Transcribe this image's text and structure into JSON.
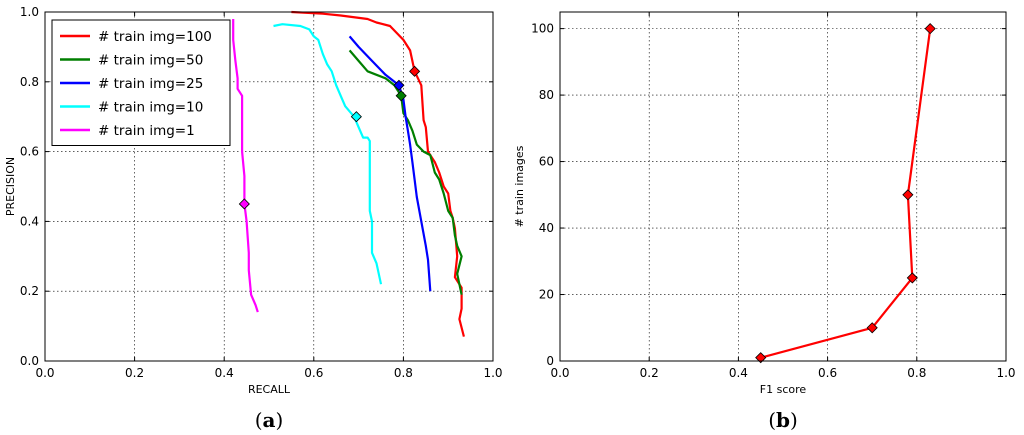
{
  "chart_data": [
    {
      "type": "line",
      "panel_label": "a",
      "xlabel": "RECALL",
      "ylabel": "PRECISION",
      "xlim": [
        0,
        1
      ],
      "ylim": [
        0,
        1
      ],
      "xticks": [
        "0.0",
        "0.2",
        "0.4",
        "0.6",
        "0.8",
        "1.0"
      ],
      "yticks": [
        "0.0",
        "0.2",
        "0.4",
        "0.6",
        "0.8",
        "1.0"
      ],
      "grid": true,
      "legend": "top-left",
      "series": [
        {
          "name": "# train img=100",
          "color": "#ff0000",
          "marker": {
            "x": 0.825,
            "y": 0.83
          },
          "points": [
            [
              0.55,
              1.0
            ],
            [
              0.62,
              0.995
            ],
            [
              0.66,
              0.99
            ],
            [
              0.72,
              0.98
            ],
            [
              0.74,
              0.97
            ],
            [
              0.77,
              0.96
            ],
            [
              0.8,
              0.92
            ],
            [
              0.815,
              0.89
            ],
            [
              0.825,
              0.83
            ],
            [
              0.84,
              0.79
            ],
            [
              0.845,
              0.69
            ],
            [
              0.85,
              0.67
            ],
            [
              0.855,
              0.6
            ],
            [
              0.87,
              0.57
            ],
            [
              0.88,
              0.54
            ],
            [
              0.89,
              0.5
            ],
            [
              0.9,
              0.48
            ],
            [
              0.905,
              0.43
            ],
            [
              0.91,
              0.41
            ],
            [
              0.915,
              0.38
            ],
            [
              0.92,
              0.3
            ],
            [
              0.915,
              0.24
            ],
            [
              0.93,
              0.21
            ],
            [
              0.93,
              0.15
            ],
            [
              0.925,
              0.12
            ],
            [
              0.935,
              0.07
            ]
          ]
        },
        {
          "name": "# train img=50",
          "color": "#007f00",
          "marker": {
            "x": 0.795,
            "y": 0.76
          },
          "points": [
            [
              0.68,
              0.89
            ],
            [
              0.7,
              0.86
            ],
            [
              0.72,
              0.83
            ],
            [
              0.74,
              0.82
            ],
            [
              0.76,
              0.81
            ],
            [
              0.78,
              0.79
            ],
            [
              0.795,
              0.76
            ],
            [
              0.8,
              0.71
            ],
            [
              0.81,
              0.69
            ],
            [
              0.82,
              0.66
            ],
            [
              0.83,
              0.62
            ],
            [
              0.845,
              0.6
            ],
            [
              0.86,
              0.59
            ],
            [
              0.87,
              0.54
            ],
            [
              0.88,
              0.52
            ],
            [
              0.89,
              0.48
            ],
            [
              0.9,
              0.43
            ],
            [
              0.91,
              0.41
            ],
            [
              0.915,
              0.36
            ],
            [
              0.92,
              0.33
            ],
            [
              0.93,
              0.3
            ],
            [
              0.92,
              0.25
            ],
            [
              0.93,
              0.19
            ]
          ]
        },
        {
          "name": "# train img=25",
          "color": "#0000ff",
          "marker": {
            "x": 0.79,
            "y": 0.79
          },
          "points": [
            [
              0.68,
              0.93
            ],
            [
              0.7,
              0.9
            ],
            [
              0.73,
              0.86
            ],
            [
              0.76,
              0.82
            ],
            [
              0.79,
              0.79
            ],
            [
              0.8,
              0.75
            ],
            [
              0.805,
              0.7
            ],
            [
              0.81,
              0.66
            ],
            [
              0.815,
              0.62
            ],
            [
              0.82,
              0.57
            ],
            [
              0.825,
              0.52
            ],
            [
              0.83,
              0.47
            ],
            [
              0.84,
              0.4
            ],
            [
              0.85,
              0.33
            ],
            [
              0.855,
              0.29
            ],
            [
              0.86,
              0.2
            ]
          ]
        },
        {
          "name": "# train img=10",
          "color": "#00ffff",
          "marker": {
            "x": 0.695,
            "y": 0.7
          },
          "points": [
            [
              0.51,
              0.96
            ],
            [
              0.53,
              0.965
            ],
            [
              0.57,
              0.96
            ],
            [
              0.59,
              0.95
            ],
            [
              0.6,
              0.93
            ],
            [
              0.61,
              0.92
            ],
            [
              0.62,
              0.88
            ],
            [
              0.63,
              0.85
            ],
            [
              0.64,
              0.83
            ],
            [
              0.65,
              0.79
            ],
            [
              0.66,
              0.76
            ],
            [
              0.67,
              0.73
            ],
            [
              0.69,
              0.7
            ],
            [
              0.7,
              0.67
            ],
            [
              0.71,
              0.64
            ],
            [
              0.72,
              0.64
            ],
            [
              0.725,
              0.63
            ],
            [
              0.725,
              0.43
            ],
            [
              0.73,
              0.4
            ],
            [
              0.73,
              0.31
            ],
            [
              0.74,
              0.28
            ],
            [
              0.75,
              0.22
            ]
          ]
        },
        {
          "name": "# train img=1",
          "color": "#ff00ff",
          "marker": {
            "x": 0.445,
            "y": 0.45
          },
          "points": [
            [
              0.42,
              0.98
            ],
            [
              0.42,
              0.92
            ],
            [
              0.425,
              0.86
            ],
            [
              0.43,
              0.81
            ],
            [
              0.43,
              0.78
            ],
            [
              0.44,
              0.76
            ],
            [
              0.44,
              0.7
            ],
            [
              0.44,
              0.6
            ],
            [
              0.445,
              0.53
            ],
            [
              0.445,
              0.45
            ],
            [
              0.45,
              0.4
            ],
            [
              0.455,
              0.31
            ],
            [
              0.455,
              0.26
            ],
            [
              0.46,
              0.19
            ],
            [
              0.47,
              0.16
            ],
            [
              0.475,
              0.14
            ]
          ]
        }
      ]
    },
    {
      "type": "line",
      "panel_label": "b",
      "xlabel": "F1 score",
      "ylabel": "# train images",
      "xlim": [
        0,
        1
      ],
      "ylim": [
        0,
        105
      ],
      "xticks": [
        "0.0",
        "0.2",
        "0.4",
        "0.6",
        "0.8",
        "1.0"
      ],
      "yticks": [
        "0",
        "20",
        "40",
        "60",
        "80",
        "100"
      ],
      "grid": true,
      "series": [
        {
          "color": "#ff0000",
          "points": [
            [
              0.45,
              1
            ],
            [
              0.7,
              10
            ],
            [
              0.79,
              25
            ],
            [
              0.78,
              50
            ],
            [
              0.83,
              100
            ]
          ]
        }
      ]
    }
  ]
}
